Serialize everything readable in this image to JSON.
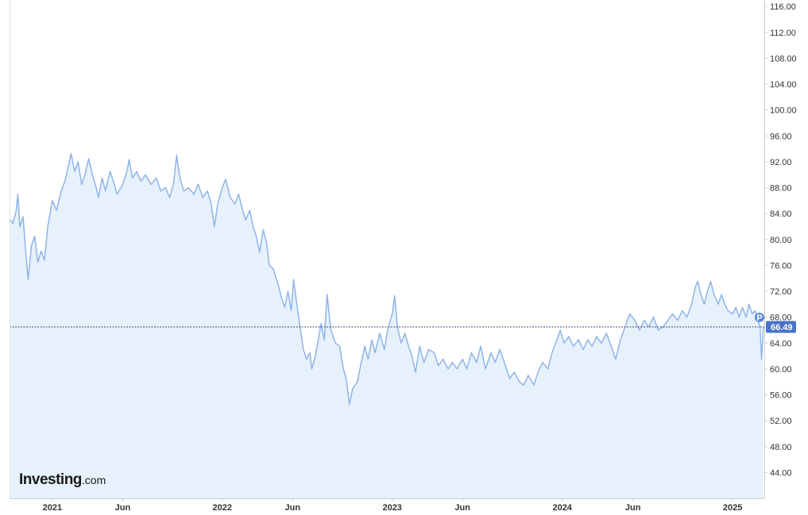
{
  "chart_data": {
    "type": "area",
    "brand": {
      "main": "Investing",
      "suffix": ".com"
    },
    "x_tick_labels": [
      "2021",
      "Jun",
      "2022",
      "Jun",
      "2023",
      "Jun",
      "2024",
      "Jun",
      "2025"
    ],
    "x_tick_dates": [
      "2021-01-01",
      "2021-06-01",
      "2022-01-01",
      "2022-06-01",
      "2023-01-01",
      "2023-06-01",
      "2024-01-01",
      "2024-06-01",
      "2025-01-01"
    ],
    "xlim": [
      "2020-10-01",
      "2025-03-10"
    ],
    "ylim": [
      40,
      117
    ],
    "y_ticks": [
      "44.00",
      "48.00",
      "52.00",
      "56.00",
      "60.00",
      "64.00",
      "68.00",
      "72.00",
      "76.00",
      "80.00",
      "84.00",
      "88.00",
      "92.00",
      "96.00",
      "100.00",
      "104.00",
      "108.00",
      "112.00",
      "116.00"
    ],
    "last_value": 66.49,
    "last_value_label": "66.49",
    "previous_marker_label": "P",
    "colors": {
      "line": "#8fb4e8",
      "fill": "#e6f1fb",
      "price_tag": "#4a74c9",
      "marker": "#5b8ad9",
      "reference_line": "#3a4a6a",
      "axis": "#cccccc"
    },
    "series": [
      {
        "points": [
          [
            "2020-10-01",
            83.2
          ],
          [
            "2020-10-08",
            82.5
          ],
          [
            "2020-10-15",
            84.3
          ],
          [
            "2020-10-19",
            87.0
          ],
          [
            "2020-10-23",
            82.0
          ],
          [
            "2020-10-30",
            83.5
          ],
          [
            "2020-11-05",
            78.0
          ],
          [
            "2020-11-10",
            73.8
          ],
          [
            "2020-11-17",
            79.0
          ],
          [
            "2020-11-24",
            80.5
          ],
          [
            "2020-12-01",
            76.5
          ],
          [
            "2020-12-08",
            78.2
          ],
          [
            "2020-12-15",
            76.8
          ],
          [
            "2020-12-22",
            82.0
          ],
          [
            "2021-01-01",
            86.0
          ],
          [
            "2021-01-10",
            84.5
          ],
          [
            "2021-01-20",
            87.5
          ],
          [
            "2021-01-28",
            89.0
          ],
          [
            "2021-02-05",
            91.5
          ],
          [
            "2021-02-10",
            93.3
          ],
          [
            "2021-02-18",
            90.5
          ],
          [
            "2021-02-25",
            92.0
          ],
          [
            "2021-03-05",
            88.5
          ],
          [
            "2021-03-12",
            90.0
          ],
          [
            "2021-03-20",
            92.5
          ],
          [
            "2021-03-28",
            90.0
          ],
          [
            "2021-04-05",
            88.0
          ],
          [
            "2021-04-10",
            86.5
          ],
          [
            "2021-04-18",
            89.5
          ],
          [
            "2021-04-25",
            87.5
          ],
          [
            "2021-05-05",
            90.5
          ],
          [
            "2021-05-12",
            89.0
          ],
          [
            "2021-05-20",
            87.0
          ],
          [
            "2021-06-01",
            88.5
          ],
          [
            "2021-06-10",
            90.5
          ],
          [
            "2021-06-15",
            92.3
          ],
          [
            "2021-06-22",
            89.5
          ],
          [
            "2021-07-01",
            90.5
          ],
          [
            "2021-07-10",
            89.0
          ],
          [
            "2021-07-20",
            90.0
          ],
          [
            "2021-08-01",
            88.5
          ],
          [
            "2021-08-12",
            89.5
          ],
          [
            "2021-08-22",
            87.5
          ],
          [
            "2021-09-01",
            88.0
          ],
          [
            "2021-09-10",
            86.5
          ],
          [
            "2021-09-18",
            88.5
          ],
          [
            "2021-09-25",
            93.0
          ],
          [
            "2021-10-02",
            89.5
          ],
          [
            "2021-10-10",
            87.5
          ],
          [
            "2021-10-20",
            88.0
          ],
          [
            "2021-11-01",
            87.0
          ],
          [
            "2021-11-10",
            88.5
          ],
          [
            "2021-11-20",
            86.5
          ],
          [
            "2021-11-30",
            87.5
          ],
          [
            "2021-12-08",
            85.5
          ],
          [
            "2021-12-15",
            82.0
          ],
          [
            "2021-12-22",
            85.5
          ],
          [
            "2022-01-01",
            88.0
          ],
          [
            "2022-01-08",
            89.3
          ],
          [
            "2022-01-18",
            86.5
          ],
          [
            "2022-01-28",
            85.5
          ],
          [
            "2022-02-05",
            87.0
          ],
          [
            "2022-02-12",
            85.0
          ],
          [
            "2022-02-20",
            83.0
          ],
          [
            "2022-03-01",
            84.5
          ],
          [
            "2022-03-08",
            82.0
          ],
          [
            "2022-03-15",
            80.5
          ],
          [
            "2022-03-22",
            78.0
          ],
          [
            "2022-03-30",
            81.5
          ],
          [
            "2022-04-06",
            79.5
          ],
          [
            "2022-04-12",
            76.0
          ],
          [
            "2022-04-20",
            75.5
          ],
          [
            "2022-05-01",
            73.0
          ],
          [
            "2022-05-08",
            71.0
          ],
          [
            "2022-05-15",
            69.5
          ],
          [
            "2022-05-22",
            72.0
          ],
          [
            "2022-05-29",
            69.0
          ],
          [
            "2022-06-03",
            73.8
          ],
          [
            "2022-06-10",
            70.0
          ],
          [
            "2022-06-17",
            66.5
          ],
          [
            "2022-06-24",
            63.0
          ],
          [
            "2022-07-01",
            61.5
          ],
          [
            "2022-07-08",
            62.5
          ],
          [
            "2022-07-12",
            60.0
          ],
          [
            "2022-07-20",
            62.0
          ],
          [
            "2022-08-01",
            67.0
          ],
          [
            "2022-08-08",
            64.5
          ],
          [
            "2022-08-14",
            71.5
          ],
          [
            "2022-08-22",
            66.0
          ],
          [
            "2022-09-01",
            64.0
          ],
          [
            "2022-09-10",
            63.5
          ],
          [
            "2022-09-18",
            60.0
          ],
          [
            "2022-09-24",
            58.5
          ],
          [
            "2022-10-01",
            54.5
          ],
          [
            "2022-10-08",
            57.0
          ],
          [
            "2022-10-18",
            58.0
          ],
          [
            "2022-10-25",
            60.5
          ],
          [
            "2022-11-03",
            63.5
          ],
          [
            "2022-11-10",
            61.5
          ],
          [
            "2022-11-18",
            64.5
          ],
          [
            "2022-11-25",
            62.5
          ],
          [
            "2022-12-05",
            65.5
          ],
          [
            "2022-12-15",
            63.0
          ],
          [
            "2022-12-22",
            66.0
          ],
          [
            "2023-01-01",
            68.5
          ],
          [
            "2023-01-06",
            71.3
          ],
          [
            "2023-01-12",
            66.5
          ],
          [
            "2023-01-20",
            64.0
          ],
          [
            "2023-01-28",
            65.5
          ],
          [
            "2023-02-05",
            63.5
          ],
          [
            "2023-02-12",
            62.0
          ],
          [
            "2023-02-20",
            59.5
          ],
          [
            "2023-03-01",
            63.5
          ],
          [
            "2023-03-10",
            61.0
          ],
          [
            "2023-03-20",
            63.0
          ],
          [
            "2023-04-01",
            62.5
          ],
          [
            "2023-04-10",
            60.5
          ],
          [
            "2023-04-20",
            61.5
          ],
          [
            "2023-05-01",
            60.0
          ],
          [
            "2023-05-10",
            61.0
          ],
          [
            "2023-05-20",
            60.0
          ],
          [
            "2023-06-01",
            61.5
          ],
          [
            "2023-06-10",
            60.0
          ],
          [
            "2023-06-20",
            62.5
          ],
          [
            "2023-07-01",
            61.0
          ],
          [
            "2023-07-10",
            63.5
          ],
          [
            "2023-07-20",
            60.0
          ],
          [
            "2023-08-01",
            62.5
          ],
          [
            "2023-08-10",
            61.0
          ],
          [
            "2023-08-20",
            63.0
          ],
          [
            "2023-09-01",
            60.5
          ],
          [
            "2023-09-10",
            58.5
          ],
          [
            "2023-09-20",
            59.5
          ],
          [
            "2023-10-01",
            58.0
          ],
          [
            "2023-10-10",
            57.5
          ],
          [
            "2023-10-20",
            59.0
          ],
          [
            "2023-11-01",
            57.5
          ],
          [
            "2023-11-10",
            59.5
          ],
          [
            "2023-11-20",
            61.0
          ],
          [
            "2023-12-01",
            60.0
          ],
          [
            "2023-12-10",
            62.5
          ],
          [
            "2023-12-18",
            64.0
          ],
          [
            "2023-12-28",
            66.0
          ],
          [
            "2024-01-05",
            64.0
          ],
          [
            "2024-01-15",
            65.0
          ],
          [
            "2024-01-25",
            63.5
          ],
          [
            "2024-02-05",
            64.5
          ],
          [
            "2024-02-15",
            63.0
          ],
          [
            "2024-02-25",
            64.5
          ],
          [
            "2024-03-05",
            63.5
          ],
          [
            "2024-03-15",
            65.0
          ],
          [
            "2024-03-25",
            64.0
          ],
          [
            "2024-04-05",
            65.5
          ],
          [
            "2024-04-15",
            63.5
          ],
          [
            "2024-04-25",
            61.5
          ],
          [
            "2024-05-05",
            64.5
          ],
          [
            "2024-05-15",
            66.5
          ],
          [
            "2024-05-25",
            68.5
          ],
          [
            "2024-06-05",
            67.5
          ],
          [
            "2024-06-15",
            66.0
          ],
          [
            "2024-06-25",
            67.5
          ],
          [
            "2024-07-05",
            66.5
          ],
          [
            "2024-07-15",
            68.0
          ],
          [
            "2024-07-25",
            66.0
          ],
          [
            "2024-08-05",
            66.5
          ],
          [
            "2024-08-15",
            67.5
          ],
          [
            "2024-08-25",
            68.5
          ],
          [
            "2024-09-05",
            67.5
          ],
          [
            "2024-09-15",
            69.0
          ],
          [
            "2024-09-25",
            68.0
          ],
          [
            "2024-10-05",
            70.0
          ],
          [
            "2024-10-12",
            72.5
          ],
          [
            "2024-10-18",
            73.5
          ],
          [
            "2024-10-25",
            71.5
          ],
          [
            "2024-11-01",
            70.0
          ],
          [
            "2024-11-08",
            72.0
          ],
          [
            "2024-11-15",
            73.5
          ],
          [
            "2024-11-22",
            71.5
          ],
          [
            "2024-12-01",
            70.0
          ],
          [
            "2024-12-08",
            71.5
          ],
          [
            "2024-12-15",
            70.0
          ],
          [
            "2024-12-22",
            69.0
          ],
          [
            "2025-01-01",
            68.5
          ],
          [
            "2025-01-08",
            69.5
          ],
          [
            "2025-01-15",
            68.0
          ],
          [
            "2025-01-22",
            69.5
          ],
          [
            "2025-01-30",
            68.0
          ],
          [
            "2025-02-05",
            70.0
          ],
          [
            "2025-02-12",
            68.5
          ],
          [
            "2025-02-18",
            69.0
          ],
          [
            "2025-02-24",
            67.5
          ],
          [
            "2025-03-01",
            66.5
          ],
          [
            "2025-03-04",
            61.5
          ],
          [
            "2025-03-06",
            64.0
          ],
          [
            "2025-03-08",
            66.49
          ]
        ]
      }
    ]
  }
}
